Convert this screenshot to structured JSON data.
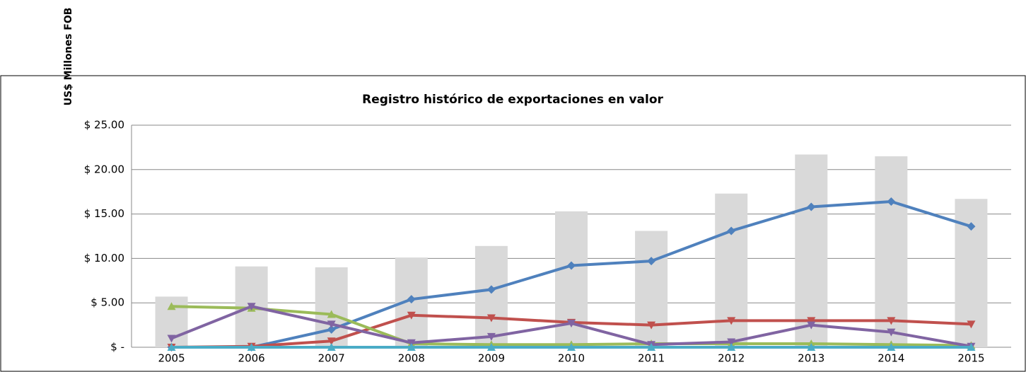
{
  "chart_data": {
    "type": "combo",
    "title": "Registro histórico de exportaciones en valor",
    "y_label": "US$ Millones FOB",
    "categories": [
      "2005",
      "2006",
      "2007",
      "2008",
      "2009",
      "2010",
      "2011",
      "2012",
      "2013",
      "2014",
      "2015"
    ],
    "series": [
      {
        "type": "bar",
        "color": "#d9d9d9",
        "values": [
          5.7,
          9.1,
          9.0,
          10.1,
          11.4,
          15.3,
          13.1,
          17.3,
          21.7,
          21.5,
          16.7
        ]
      },
      {
        "type": "line",
        "color": "#4f81bd",
        "marker": "diamond",
        "values": [
          0,
          0,
          2.0,
          5.4,
          6.5,
          9.2,
          9.7,
          13.1,
          15.8,
          16.4,
          13.6
        ]
      },
      {
        "type": "line",
        "color": "#c0504d",
        "marker": "down",
        "values": [
          0,
          0.1,
          0.7,
          3.6,
          3.3,
          2.8,
          2.5,
          3.0,
          3.0,
          3.0,
          2.6
        ]
      },
      {
        "type": "line",
        "color": "#9bbb59",
        "marker": "up",
        "values": [
          4.6,
          4.4,
          3.7,
          0.4,
          0.3,
          0.3,
          0.4,
          0.4,
          0.4,
          0.3,
          0.2
        ]
      },
      {
        "type": "line",
        "color": "#8064a2",
        "marker": "down",
        "values": [
          1.0,
          4.6,
          2.6,
          0.5,
          1.2,
          2.7,
          0.3,
          0.6,
          2.5,
          1.7,
          0.1
        ]
      },
      {
        "type": "line",
        "color": "#4bacc6",
        "marker": "up",
        "values": [
          0,
          0,
          0,
          0,
          0,
          0,
          0,
          0,
          0,
          0,
          0
        ]
      }
    ],
    "ylim": [
      0,
      25
    ],
    "yticks": [
      {
        "value": 0,
        "label": "$ -"
      },
      {
        "value": 5,
        "label": "$ 5.00"
      },
      {
        "value": 10,
        "label": "$ 10.00"
      },
      {
        "value": 15,
        "label": "$ 15.00"
      },
      {
        "value": 20,
        "label": "$ 20.00"
      },
      {
        "value": 25,
        "label": "$ 25.00"
      }
    ],
    "grid": true
  }
}
